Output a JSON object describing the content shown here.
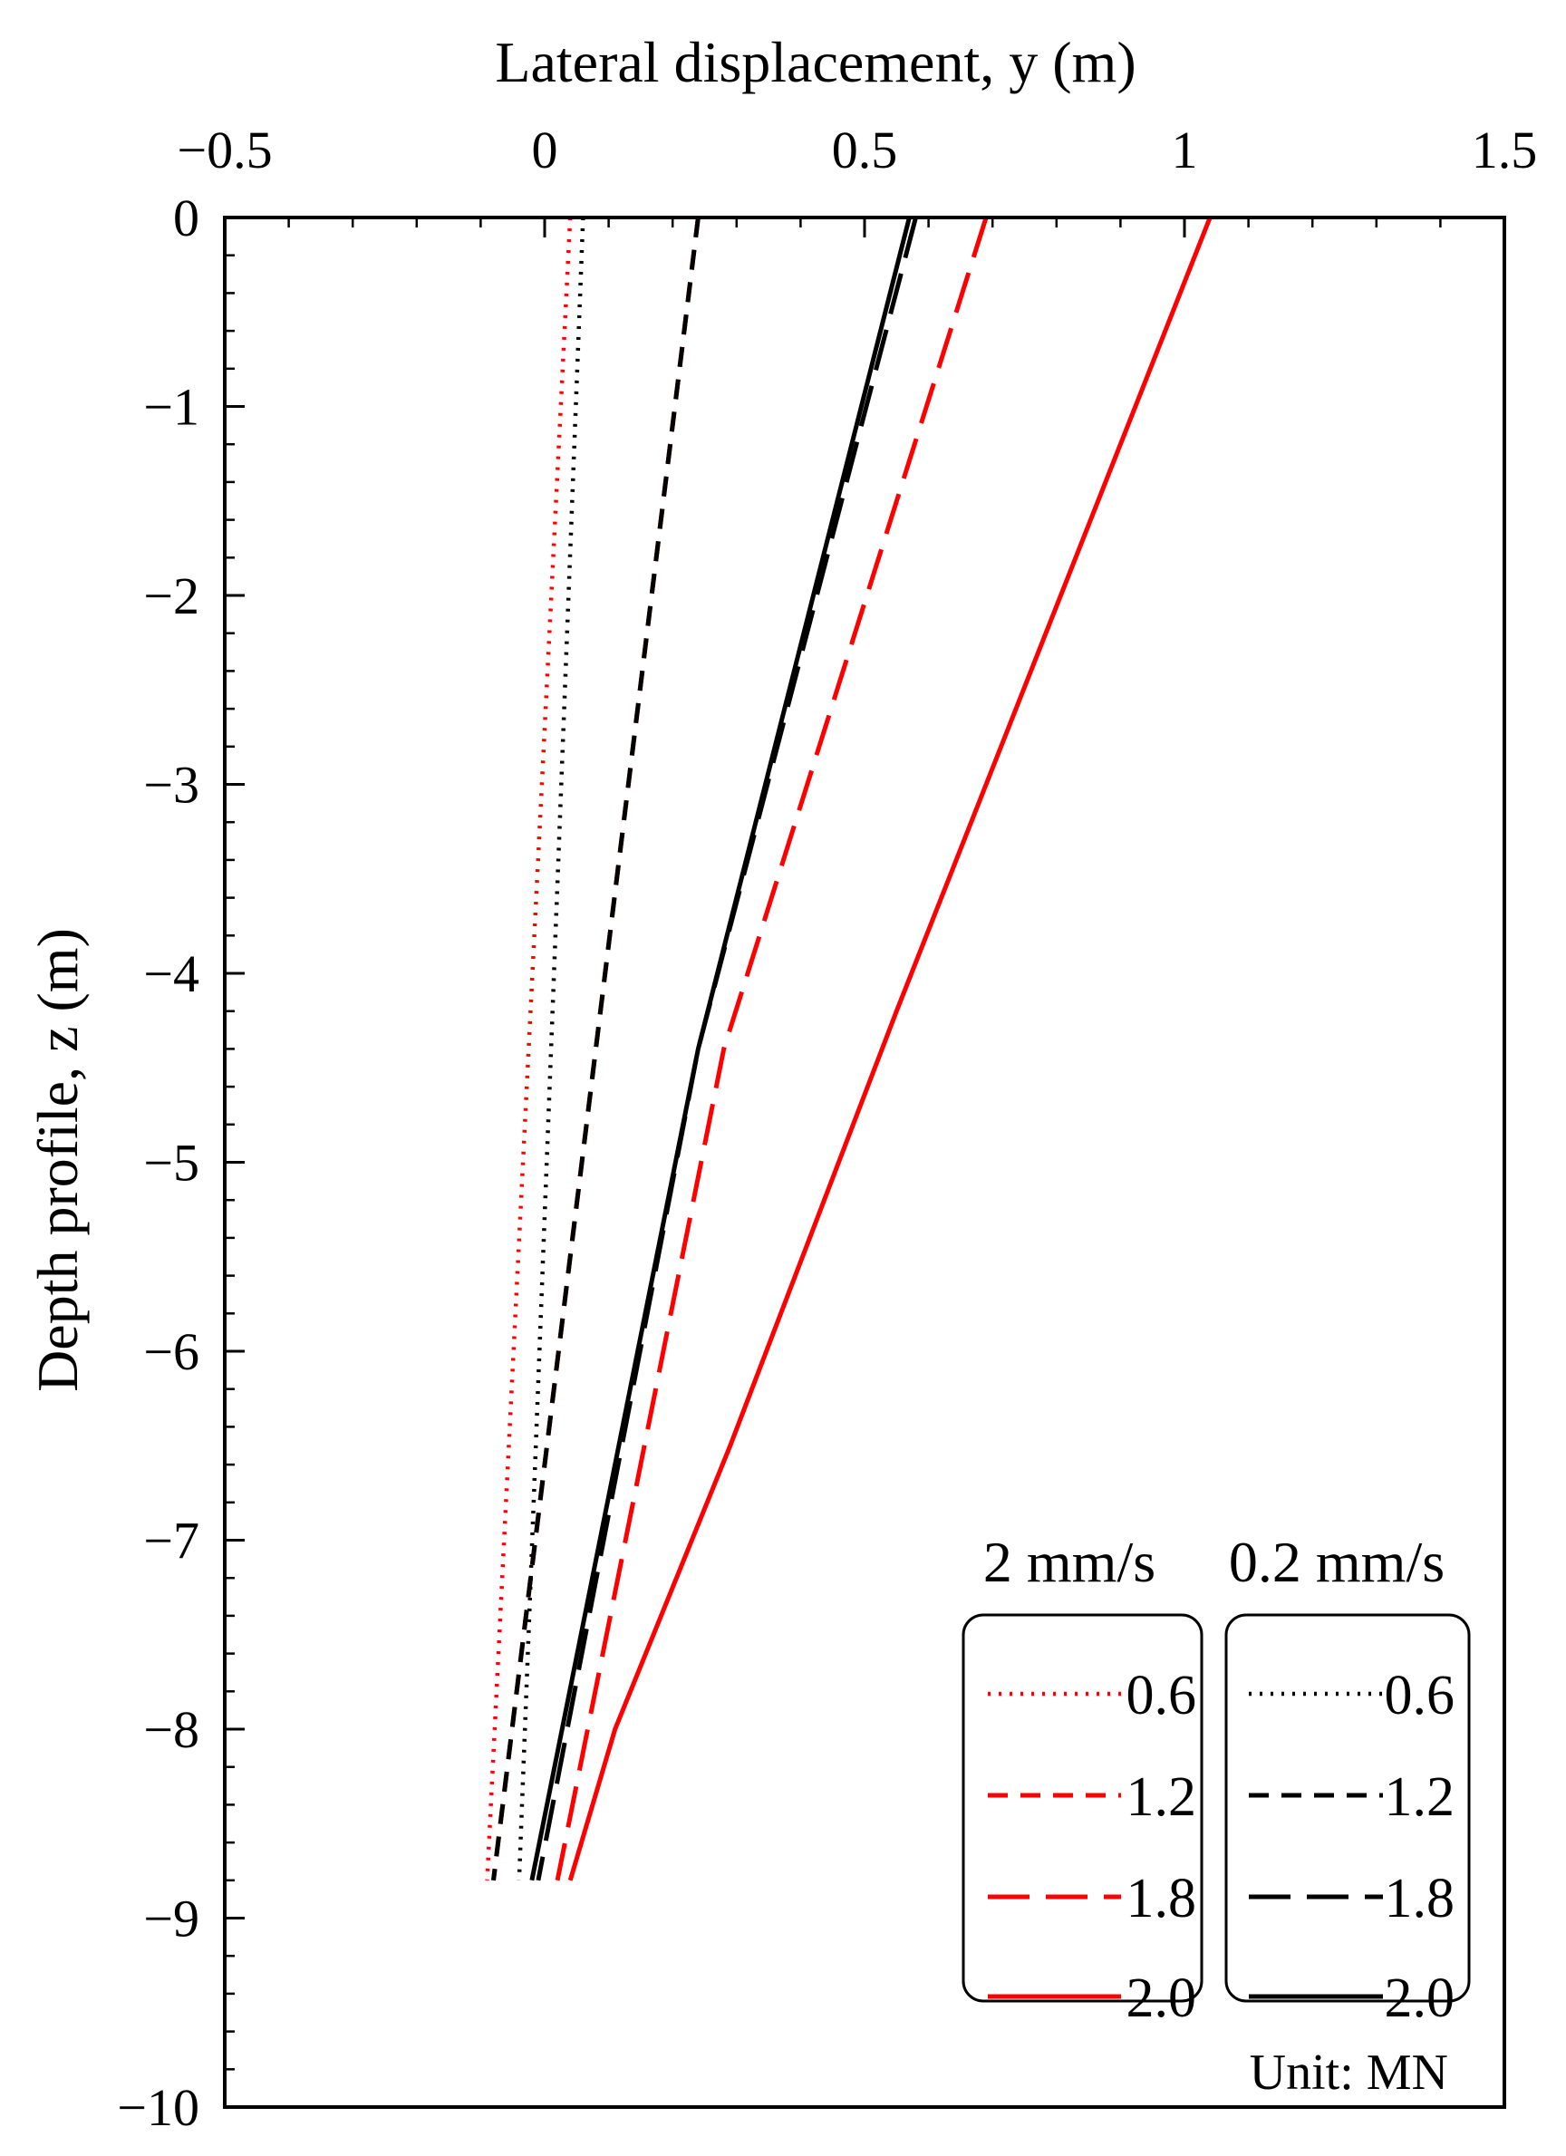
{
  "chart_data": {
    "type": "line",
    "xlabel": "Lateral displacement, y (m)",
    "ylabel": "Depth profile, z (m)",
    "xlim": [
      -0.5,
      1.5
    ],
    "ylim": [
      -10,
      0
    ],
    "x_ticks": [
      -0.5,
      0,
      0.5,
      1,
      1.5
    ],
    "x_tick_labels": [
      "−0.5",
      "0",
      "0.5",
      "1",
      "1.5"
    ],
    "y_ticks": [
      0,
      -1,
      -2,
      -3,
      -4,
      -5,
      -6,
      -7,
      -8,
      -9,
      -10
    ],
    "y_tick_labels": [
      "0",
      "−1",
      "−2",
      "−3",
      "−4",
      "−5",
      "−6",
      "−7",
      "−8",
      "−9",
      "−10"
    ],
    "legend": {
      "group_headers": [
        "2 mm/s",
        "0.2 mm/s"
      ],
      "unit_note": "Unit: MN",
      "placement": "bottom-right"
    },
    "colors": {
      "2 mm/s": "#ff0000",
      "0.2 mm/s": "#000000"
    },
    "series": [
      {
        "name": "0.6",
        "group": "2 mm/s",
        "dash": "dotted",
        "points": [
          [
            0.04,
            0
          ],
          [
            -0.09,
            -8.8
          ]
        ]
      },
      {
        "name": "1.2",
        "group": "2 mm/s",
        "dash": "dashed",
        "points": [
          [
            0.24,
            0
          ],
          [
            -0.08,
            -8.8
          ]
        ]
      },
      {
        "name": "1.8",
        "group": "2 mm/s",
        "dash": "longdash",
        "points": [
          [
            0.69,
            0
          ],
          [
            0.28,
            -4.4
          ],
          [
            0.02,
            -8.8
          ]
        ]
      },
      {
        "name": "2.0",
        "group": "2 mm/s",
        "dash": "solid",
        "points": [
          [
            1.04,
            0
          ],
          [
            0.55,
            -4.2
          ],
          [
            0.29,
            -6.5
          ],
          [
            0.11,
            -8.0
          ],
          [
            0.04,
            -8.8
          ]
        ]
      },
      {
        "name": "0.6",
        "group": "0.2 mm/s",
        "dash": "dotted",
        "points": [
          [
            0.06,
            0
          ],
          [
            -0.04,
            -8.8
          ]
        ]
      },
      {
        "name": "1.2",
        "group": "0.2 mm/s",
        "dash": "dashed",
        "points": [
          [
            0.24,
            0
          ],
          [
            -0.08,
            -8.8
          ]
        ]
      },
      {
        "name": "1.8",
        "group": "0.2 mm/s",
        "dash": "longdash",
        "points": [
          [
            0.58,
            0
          ],
          [
            0.24,
            -4.4
          ],
          [
            -0.01,
            -8.8
          ]
        ]
      },
      {
        "name": "2.0",
        "group": "0.2 mm/s",
        "dash": "solid",
        "points": [
          [
            0.57,
            0
          ],
          [
            0.24,
            -4.4
          ],
          [
            -0.02,
            -8.8
          ]
        ]
      }
    ]
  }
}
